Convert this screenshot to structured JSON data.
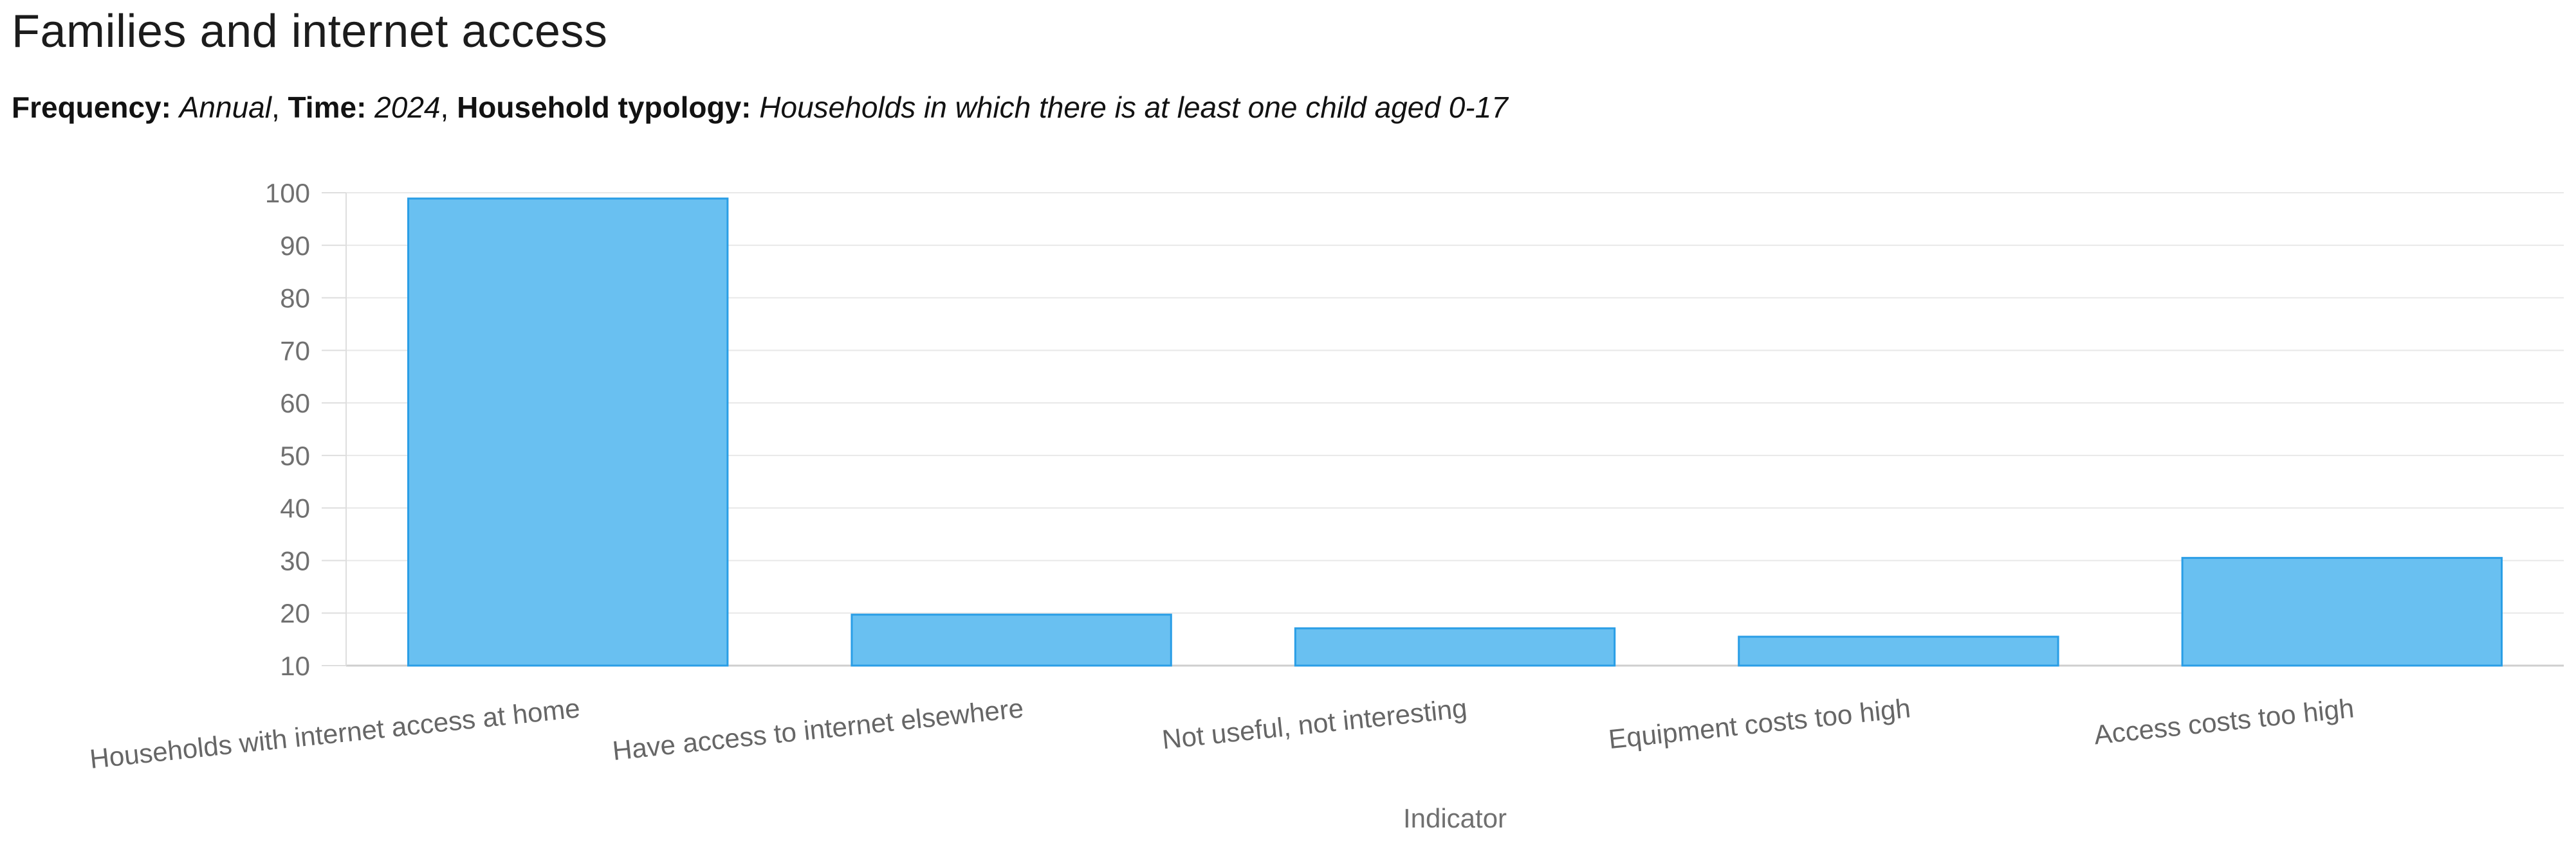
{
  "header": {
    "title": "Families and internet access",
    "subtitle_parts": [
      {
        "text": "Frequency:",
        "style": "bold"
      },
      {
        "text": " ",
        "style": "plain"
      },
      {
        "text": "Annual",
        "style": "italic"
      },
      {
        "text": ", ",
        "style": "plain"
      },
      {
        "text": "Time:",
        "style": "bold"
      },
      {
        "text": " ",
        "style": "plain"
      },
      {
        "text": "2024",
        "style": "italic"
      },
      {
        "text": ", ",
        "style": "plain"
      },
      {
        "text": "Household typology:",
        "style": "bold"
      },
      {
        "text": " ",
        "style": "plain"
      },
      {
        "text": "Households in which there is at least one child aged 0-17",
        "style": "italic"
      }
    ]
  },
  "chart_data": {
    "type": "bar",
    "title": "Families and internet access",
    "categories": [
      "Households with internet access at home",
      "Have access to internet elsewhere",
      "Not useful, not interesting",
      "Equipment costs too high",
      "Access costs too high"
    ],
    "values": [
      98.9,
      19.7,
      17.1,
      15.5,
      30.5
    ],
    "xlabel": "Indicator",
    "ylabel": "",
    "ylim": [
      10,
      100
    ],
    "ytick_step": 10,
    "ytick_labels": [
      "10",
      "20",
      "30",
      "40",
      "50",
      "60",
      "70",
      "80",
      "90",
      "100"
    ],
    "grid": true,
    "legend_position": "none",
    "label_rotation_deg": -6,
    "colors": {
      "bar_fill": "#69c0f1",
      "bar_stroke": "#2a9ee6",
      "grid_line": "#e8e8e8",
      "axis_line": "#cfcfcf",
      "tick_line": "#dedede",
      "tick_label": "#707070",
      "category_label": "#666666",
      "axis_title": "#707070",
      "title_text": "#1c1c1c",
      "subtitle_text": "#121212"
    }
  }
}
